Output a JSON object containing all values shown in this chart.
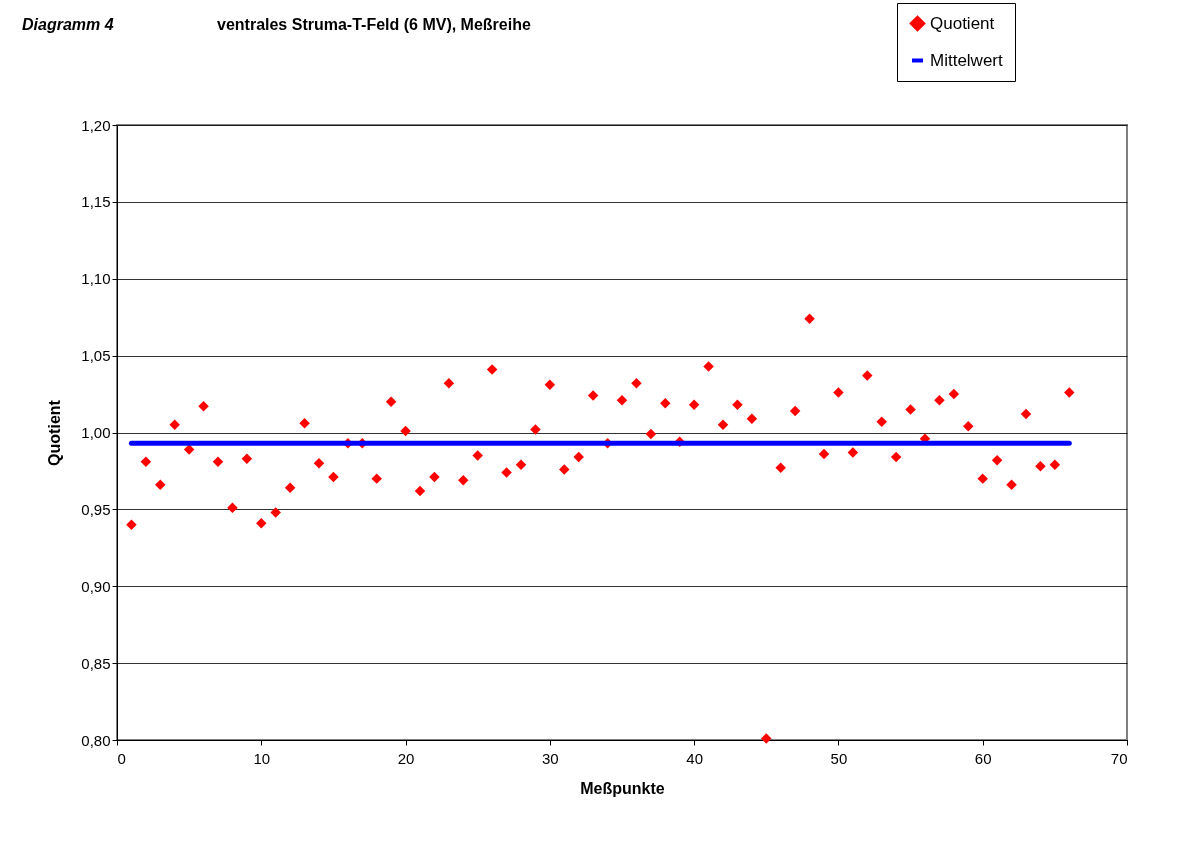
{
  "chart_data": {
    "type": "scatter",
    "title": "Diagramm 4",
    "subtitle": "ventrales Struma-T-Feld (6 MV), Meßreihe",
    "xlabel": "Meßpunkte",
    "ylabel": "Quotient",
    "x": [
      1,
      2,
      3,
      4,
      5,
      6,
      7,
      8,
      9,
      10,
      11,
      12,
      13,
      14,
      15,
      16,
      17,
      18,
      19,
      20,
      21,
      22,
      23,
      24,
      25,
      26,
      27,
      28,
      29,
      30,
      31,
      32,
      33,
      34,
      35,
      36,
      37,
      38,
      39,
      40,
      41,
      42,
      43,
      44,
      45,
      46,
      47,
      48,
      49,
      50,
      51,
      52,
      53,
      54,
      55,
      56,
      57,
      58,
      59,
      60,
      61,
      62,
      63,
      64,
      65,
      66
    ],
    "series": [
      {
        "name": "Quotient",
        "color": "#ff0000",
        "marker": "diamond",
        "values": [
          0.94,
          0.981,
          0.966,
          1.005,
          0.989,
          1.017,
          0.981,
          0.951,
          0.983,
          0.941,
          0.948,
          0.964,
          1.006,
          0.98,
          0.971,
          0.993,
          0.993,
          0.97,
          1.02,
          1.001,
          0.962,
          0.971,
          1.032,
          0.969,
          0.985,
          1.041,
          0.974,
          0.979,
          1.002,
          1.031,
          0.976,
          0.984,
          1.024,
          0.993,
          1.021,
          1.032,
          0.999,
          1.019,
          0.994,
          1.018,
          1.043,
          1.005,
          1.018,
          1.009,
          0.801,
          0.977,
          1.014,
          1.074,
          0.986,
          1.026,
          0.987,
          1.037,
          1.007,
          0.984,
          1.015,
          0.996,
          1.021,
          1.025,
          1.004,
          0.97,
          0.982,
          0.966,
          1.012,
          0.978,
          0.979,
          1.026
        ]
      },
      {
        "name": "Mittelwert",
        "color": "#0000ff",
        "type": "line",
        "marker": "none",
        "line_style": "solid",
        "x": [
          1,
          66
        ],
        "values": [
          0.993,
          0.993
        ]
      }
    ],
    "xlim": [
      0,
      70
    ],
    "xticks": [
      0,
      10,
      20,
      30,
      40,
      50,
      60,
      70
    ],
    "ylim": [
      0.8,
      1.2
    ],
    "yticks": [
      {
        "value": 0.8,
        "label": "0,80"
      },
      {
        "value": 0.85,
        "label": "0,85"
      },
      {
        "value": 0.9,
        "label": "0,90"
      },
      {
        "value": 0.95,
        "label": "0,95"
      },
      {
        "value": 1.0,
        "label": "1,00"
      },
      {
        "value": 1.05,
        "label": "1,05"
      },
      {
        "value": 1.1,
        "label": "1,10"
      },
      {
        "value": 1.15,
        "label": "1,15"
      },
      {
        "value": 1.2,
        "label": "1,20"
      }
    ],
    "grid": "y",
    "legend": "top right"
  }
}
